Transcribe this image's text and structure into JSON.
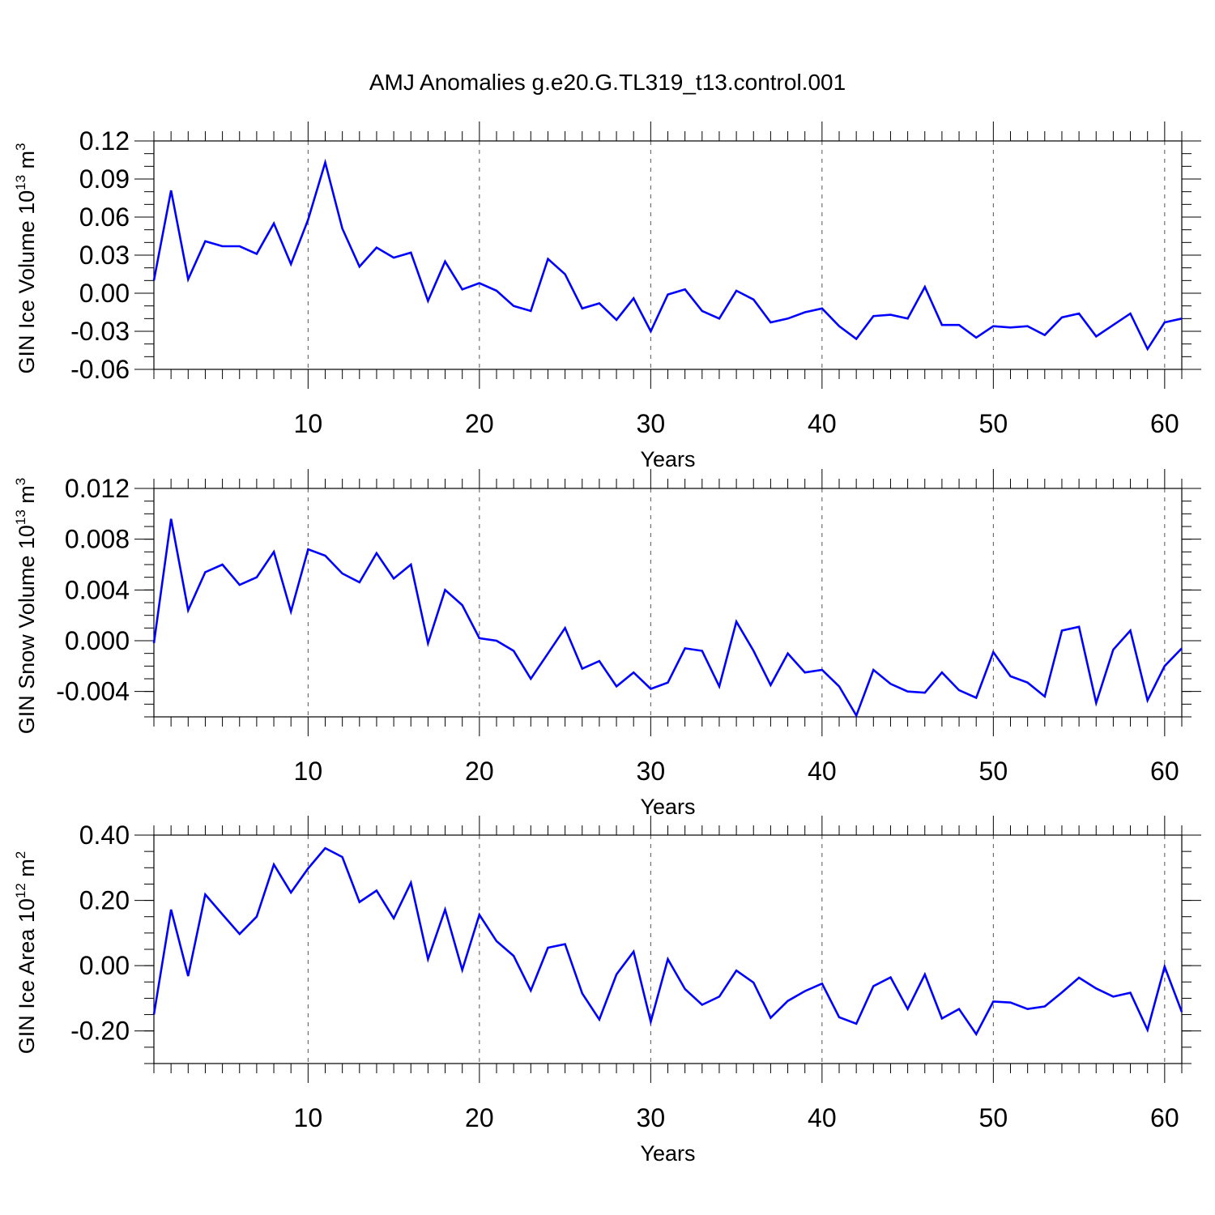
{
  "title": "AMJ Anomalies g.e20.G.TL319_t13.control.001",
  "line_color": "#0000ff",
  "chart_data": [
    {
      "type": "line",
      "xlabel": "Years",
      "ylabel": {
        "pre": "GIN Ice Volume 10",
        "sup": "13",
        "post": " m",
        "sup2": "3"
      },
      "xlim": [
        1,
        61
      ],
      "ylim": [
        -0.06,
        0.12
      ],
      "yticks": [
        "0.12",
        "0.09",
        "0.06",
        "0.03",
        "0.00",
        "-0.03",
        "-0.06"
      ],
      "xticks": [
        "10",
        "20",
        "30",
        "40",
        "50",
        "60"
      ],
      "x": [
        1,
        2,
        3,
        4,
        5,
        6,
        7,
        8,
        9,
        10,
        11,
        12,
        13,
        14,
        15,
        16,
        17,
        18,
        19,
        20,
        21,
        22,
        23,
        24,
        25,
        26,
        27,
        28,
        29,
        30,
        31,
        32,
        33,
        34,
        35,
        36,
        37,
        38,
        39,
        40,
        41,
        42,
        43,
        44,
        45,
        46,
        47,
        48,
        49,
        50,
        51,
        52,
        53,
        54,
        55,
        56,
        57,
        58,
        59,
        60,
        61
      ],
      "values": [
        0.01,
        0.081,
        0.011,
        0.041,
        0.037,
        0.037,
        0.031,
        0.055,
        0.023,
        0.058,
        0.103,
        0.051,
        0.021,
        0.036,
        0.028,
        0.032,
        -0.006,
        0.025,
        0.003,
        0.008,
        0.002,
        -0.01,
        -0.014,
        0.027,
        0.015,
        -0.012,
        -0.008,
        -0.021,
        -0.004,
        -0.03,
        -0.001,
        0.003,
        -0.014,
        -0.02,
        0.002,
        -0.005,
        -0.023,
        -0.02,
        -0.015,
        -0.012,
        -0.026,
        -0.036,
        -0.018,
        -0.017,
        -0.02,
        0.005,
        -0.025,
        -0.025,
        -0.035,
        -0.026,
        -0.027,
        -0.026,
        -0.033,
        -0.019,
        -0.016,
        -0.034,
        -0.025,
        -0.016,
        -0.044,
        -0.023,
        -0.02
      ]
    },
    {
      "type": "line",
      "xlabel": "Years",
      "ylabel": {
        "pre": "GIN Snow Volume 10",
        "sup": "13",
        "post": " m",
        "sup2": "3"
      },
      "xlim": [
        1,
        61
      ],
      "ylim": [
        -0.006,
        0.012
      ],
      "yticks": [
        "0.012",
        "0.008",
        "0.004",
        "0.000",
        "-0.004"
      ],
      "xticks": [
        "10",
        "20",
        "30",
        "40",
        "50",
        "60"
      ],
      "x": [
        1,
        2,
        3,
        4,
        5,
        6,
        7,
        8,
        9,
        10,
        11,
        12,
        13,
        14,
        15,
        16,
        17,
        18,
        19,
        20,
        21,
        22,
        23,
        24,
        25,
        26,
        27,
        28,
        29,
        30,
        31,
        32,
        33,
        34,
        35,
        36,
        37,
        38,
        39,
        40,
        41,
        42,
        43,
        44,
        45,
        46,
        47,
        48,
        49,
        50,
        51,
        52,
        53,
        54,
        55,
        56,
        57,
        58,
        59,
        60,
        61
      ],
      "values": [
        -0.0002,
        0.0096,
        0.0024,
        0.0054,
        0.006,
        0.0044,
        0.005,
        0.007,
        0.0023,
        0.0072,
        0.0067,
        0.0053,
        0.0046,
        0.0069,
        0.0049,
        0.006,
        -0.0002,
        0.004,
        0.0028,
        0.0002,
        0.0,
        -0.0008,
        -0.003,
        -0.001,
        0.001,
        -0.0022,
        -0.0016,
        -0.0036,
        -0.0025,
        -0.0038,
        -0.0033,
        -0.0006,
        -0.0008,
        -0.0036,
        0.0015,
        -0.0008,
        -0.0035,
        -0.001,
        -0.0025,
        -0.0023,
        -0.0036,
        -0.0059,
        -0.0023,
        -0.0034,
        -0.004,
        -0.0041,
        -0.0025,
        -0.0039,
        -0.0045,
        -0.0009,
        -0.0028,
        -0.0033,
        -0.0044,
        0.0008,
        0.0011,
        -0.0049,
        -0.0007,
        0.0008,
        -0.0047,
        -0.002,
        -0.0006
      ]
    },
    {
      "type": "line",
      "xlabel": "Years",
      "ylabel": {
        "pre": "GIN Ice Area 10",
        "sup": "12",
        "post": " m",
        "sup2": "2"
      },
      "xlim": [
        1,
        61
      ],
      "ylim": [
        -0.3,
        0.4
      ],
      "yticks": [
        "0.40",
        "0.20",
        "0.00",
        "-0.20"
      ],
      "xticks": [
        "10",
        "20",
        "30",
        "40",
        "50",
        "60"
      ],
      "x": [
        1,
        2,
        3,
        4,
        5,
        6,
        7,
        8,
        9,
        10,
        11,
        12,
        13,
        14,
        15,
        16,
        17,
        18,
        19,
        20,
        21,
        22,
        23,
        24,
        25,
        26,
        27,
        28,
        29,
        30,
        31,
        32,
        33,
        34,
        35,
        36,
        37,
        38,
        39,
        40,
        41,
        42,
        43,
        44,
        45,
        46,
        47,
        48,
        49,
        50,
        51,
        52,
        53,
        54,
        55,
        56,
        57,
        58,
        59,
        60,
        61
      ],
      "values": [
        -0.15,
        0.172,
        -0.032,
        0.218,
        0.157,
        0.097,
        0.15,
        0.31,
        0.224,
        0.298,
        0.36,
        0.333,
        0.195,
        0.23,
        0.145,
        0.254,
        0.02,
        0.172,
        -0.013,
        0.156,
        0.075,
        0.03,
        -0.076,
        0.055,
        0.066,
        -0.085,
        -0.165,
        -0.027,
        0.043,
        -0.172,
        0.02,
        -0.072,
        -0.12,
        -0.095,
        -0.015,
        -0.052,
        -0.16,
        -0.108,
        -0.078,
        -0.055,
        -0.158,
        -0.178,
        -0.063,
        -0.036,
        -0.133,
        -0.027,
        -0.162,
        -0.133,
        -0.21,
        -0.11,
        -0.113,
        -0.133,
        -0.125,
        -0.082,
        -0.037,
        -0.07,
        -0.095,
        -0.083,
        -0.197,
        -0.003,
        -0.142
      ]
    }
  ]
}
